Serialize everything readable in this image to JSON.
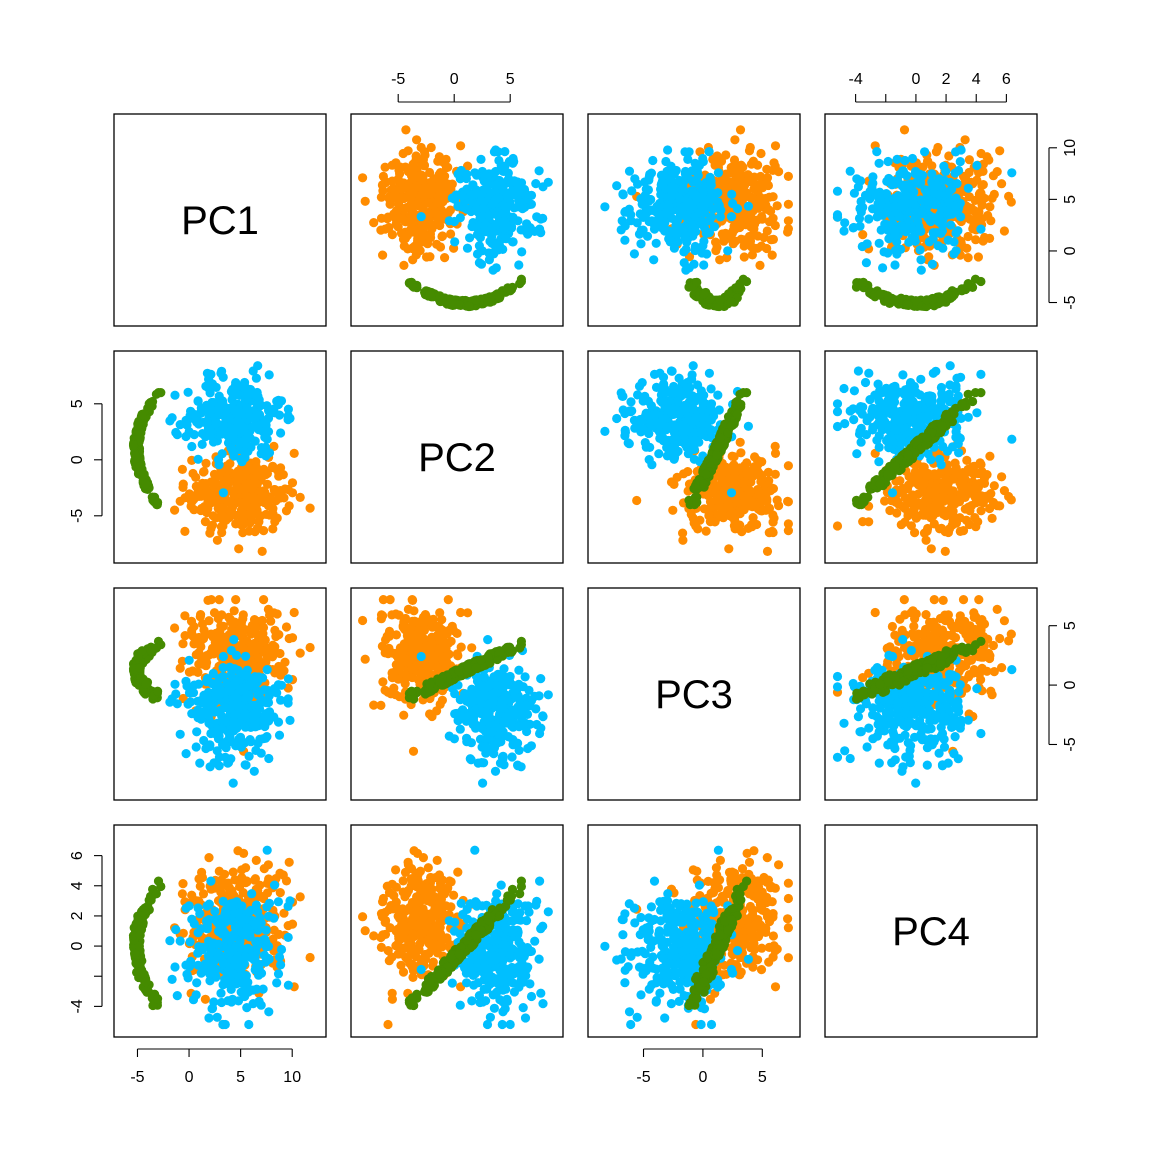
{
  "chart_data": {
    "type": "scatter",
    "subtype": "pairs",
    "variables": [
      "PC1",
      "PC2",
      "PC3",
      "PC4"
    ],
    "ranges": {
      "PC1": [
        -6.5,
        12.5
      ],
      "PC2": [
        -8.5,
        9.0
      ],
      "PC3": [
        -9.0,
        7.5
      ],
      "PC4": [
        -5.5,
        7.5
      ]
    },
    "ticks": {
      "PC1": [
        -5,
        0,
        5,
        10
      ],
      "PC2": [
        -5,
        0,
        5
      ],
      "PC3": [
        -5,
        0,
        5
      ],
      "PC4": [
        -4,
        -2,
        0,
        2,
        4,
        6
      ]
    },
    "tick_labels": {
      "PC1": [
        "-5",
        "0",
        "5",
        "10"
      ],
      "PC2": [
        "-5",
        "0",
        "5"
      ],
      "PC3": [
        "-5",
        "0",
        "5"
      ],
      "PC4": [
        "-4",
        "",
        "0",
        "2",
        "4",
        "6"
      ]
    },
    "axes_shown": {
      "bottom": [
        0,
        2
      ],
      "top": [
        1,
        3
      ],
      "left": [
        1,
        3
      ],
      "right": [
        0,
        2
      ]
    },
    "groups": [
      {
        "color": "#ff8c00",
        "approx_points": 900,
        "mean": {
          "PC1": 4.8,
          "PC2": -3.0,
          "PC3": 2.5,
          "PC4": 1.5
        },
        "sd": {
          "PC1": 2.5,
          "PC2": 1.8,
          "PC3": 2.0,
          "PC4": 2.0
        }
      },
      {
        "color": "#00bfff",
        "approx_points": 900,
        "mean": {
          "PC1": 4.5,
          "PC2": 4.0,
          "PC3": -2.0,
          "PC4": -0.5
        },
        "sd": {
          "PC1": 2.3,
          "PC2": 1.8,
          "PC3": 2.0,
          "PC4": 2.0
        }
      },
      {
        "color": "#458b00",
        "approx_points": 600,
        "range": {
          "PC1": [
            -6,
            -3
          ],
          "PC2": [
            -4,
            6
          ],
          "PC3": [
            -1,
            3.5
          ],
          "PC4": [
            -4,
            4
          ]
        }
      }
    ],
    "grid": false,
    "legend": "none"
  }
}
